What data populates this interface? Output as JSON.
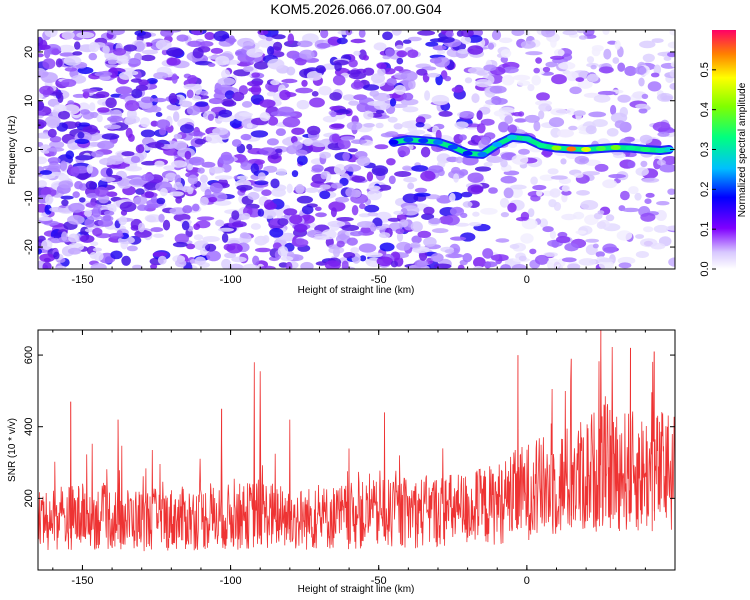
{
  "title": "KOM5.2026.066.07.00.G04",
  "chart_data": [
    {
      "type": "heatmap",
      "title": "KOM5.2026.066.07.00.G04",
      "xlabel": "Height of straight line (km)",
      "ylabel": "Frequency (Hz)",
      "xlim": [
        -165,
        50
      ],
      "ylim": [
        -24.5,
        24.5
      ],
      "x_ticks": [
        -150,
        -100,
        -50,
        0
      ],
      "y_ticks": [
        -20,
        -10,
        0,
        10,
        20
      ],
      "colorbar": {
        "label": "Normalized spectral amplitude",
        "range": [
          0.0,
          0.6
        ],
        "ticks": [
          0.0,
          0.1,
          0.2,
          0.3,
          0.4,
          0.5
        ]
      },
      "ridge": {
        "x": [
          -45,
          -40,
          -35,
          -30,
          -25,
          -20,
          -15,
          -10,
          -5,
          0,
          5,
          10,
          15,
          20,
          25,
          30,
          35,
          40,
          45,
          48
        ],
        "frequency": [
          1.5,
          2.0,
          1.8,
          1.5,
          0.5,
          -0.8,
          -1.0,
          1.0,
          2.5,
          2.2,
          0.8,
          0.3,
          0.1,
          0.0,
          0.2,
          0.4,
          0.3,
          0.0,
          -0.2,
          0.0
        ],
        "amplitude": [
          0.15,
          0.18,
          0.17,
          0.2,
          0.18,
          0.16,
          0.2,
          0.22,
          0.25,
          0.28,
          0.3,
          0.4,
          0.58,
          0.45,
          0.35,
          0.38,
          0.3,
          0.32,
          0.28,
          0.25
        ]
      }
    },
    {
      "type": "line",
      "xlabel": "Height of straight line (km)",
      "ylabel": "SNR (10 * v/v)",
      "xlim": [
        -165,
        50
      ],
      "ylim": [
        0,
        670
      ],
      "x_ticks": [
        -150,
        -100,
        -50,
        0
      ],
      "y_ticks": [
        200,
        400,
        600
      ],
      "series": [
        {
          "name": "SNR",
          "color": "#ee3333",
          "envelope_x": [
            -165,
            -150,
            -130,
            -110,
            -95,
            -90,
            -80,
            -60,
            -40,
            -20,
            -10,
            0,
            10,
            20,
            25,
            30,
            40,
            50
          ],
          "envelope_mean": [
            140,
            150,
            140,
            145,
            150,
            160,
            140,
            150,
            160,
            170,
            185,
            220,
            240,
            265,
            290,
            280,
            270,
            280
          ],
          "peaks": [
            {
              "x": -154,
              "y": 470
            },
            {
              "x": -138,
              "y": 420
            },
            {
              "x": -103,
              "y": 450
            },
            {
              "x": -92,
              "y": 580
            },
            {
              "x": -90,
              "y": 555
            },
            {
              "x": -80,
              "y": 420
            },
            {
              "x": -48,
              "y": 440
            },
            {
              "x": -3,
              "y": 600
            },
            {
              "x": 15,
              "y": 590
            },
            {
              "x": 25,
              "y": 670
            },
            {
              "x": 35,
              "y": 620
            },
            {
              "x": 43,
              "y": 610
            }
          ]
        }
      ]
    }
  ]
}
